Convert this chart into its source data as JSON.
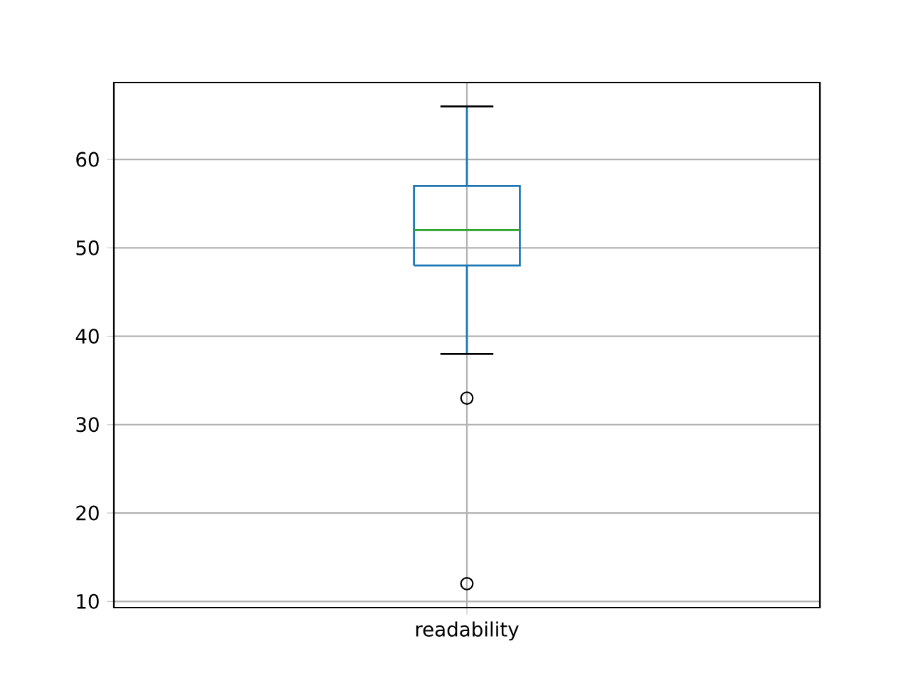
{
  "chart_data": {
    "type": "box",
    "categories": [
      "readability"
    ],
    "boxes": [
      {
        "low": 38,
        "q1": 48,
        "median": 52,
        "q3": 57,
        "high": 66,
        "outliers": [
          33,
          12
        ]
      }
    ],
    "ylim": [
      9.3,
      68.7
    ],
    "yticks": [
      10,
      20,
      30,
      40,
      50,
      60
    ],
    "grid": true
  }
}
